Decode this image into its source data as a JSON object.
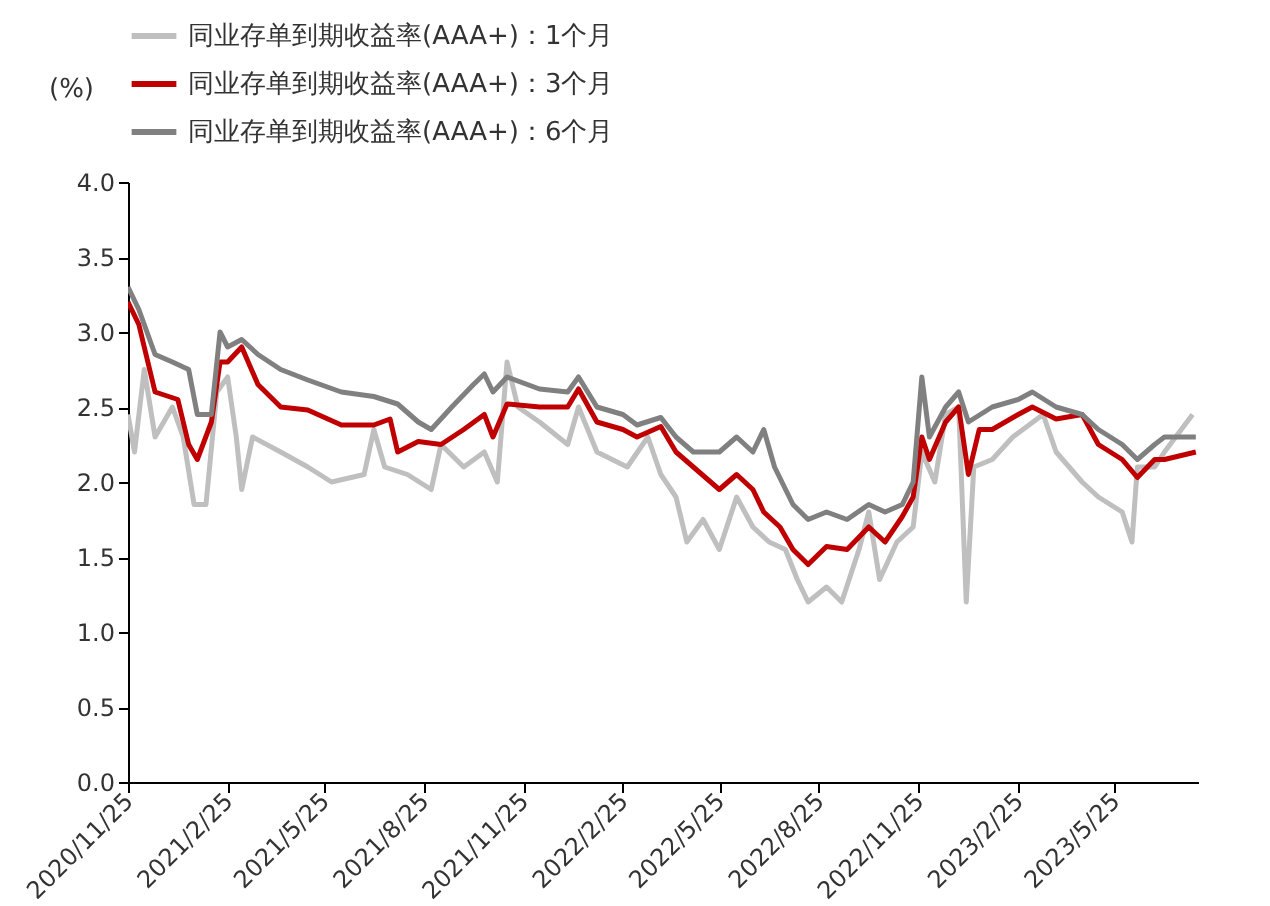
{
  "chart_data": {
    "type": "line",
    "ylabel": "(%)",
    "xlim": [
      "2020-11-25",
      "2023-08-10"
    ],
    "xticks": [
      {
        "value": "2020-11-25",
        "label": "2020/11/25"
      },
      {
        "value": "2021-02-25",
        "label": "2021/2/25"
      },
      {
        "value": "2021-05-25",
        "label": "2021/5/25"
      },
      {
        "value": "2021-08-25",
        "label": "2021/8/25"
      },
      {
        "value": "2021-11-25",
        "label": "2021/11/25"
      },
      {
        "value": "2022-02-25",
        "label": "2022/2/25"
      },
      {
        "value": "2022-05-25",
        "label": "2022/5/25"
      },
      {
        "value": "2022-08-25",
        "label": "2022/8/25"
      },
      {
        "value": "2022-11-25",
        "label": "2022/11/25"
      },
      {
        "value": "2023-02-25",
        "label": "2023/2/25"
      },
      {
        "value": "2023-05-25",
        "label": "2023/5/25"
      }
    ],
    "ylim": [
      0,
      4
    ],
    "yticks": [
      {
        "value": 0,
        "label": "0.0"
      },
      {
        "value": 0.5,
        "label": "0.5"
      },
      {
        "value": 1,
        "label": "1.0"
      },
      {
        "value": 1.5,
        "label": "1.5"
      },
      {
        "value": 2,
        "label": "2.0"
      },
      {
        "value": 2.5,
        "label": "2.5"
      },
      {
        "value": 3,
        "label": "3.0"
      },
      {
        "value": 3.5,
        "label": "3.5"
      },
      {
        "value": 4,
        "label": "4.0"
      }
    ],
    "grid": false,
    "legend": "top",
    "line_style": "solid",
    "marker": "none",
    "series": [
      {
        "name": "同业存单到期收益率(AAA+)：1个月",
        "color": "#bfbfbf",
        "x": [
          "2020-11-25",
          "2020-12-01",
          "2020-12-10",
          "2020-12-20",
          "2021-01-05",
          "2021-01-15",
          "2021-01-25",
          "2021-02-05",
          "2021-02-15",
          "2021-02-25",
          "2021-03-05",
          "2021-03-10",
          "2021-03-20",
          "2021-04-15",
          "2021-05-10",
          "2021-06-01",
          "2021-07-01",
          "2021-07-10",
          "2021-07-20",
          "2021-08-10",
          "2021-09-01",
          "2021-09-10",
          "2021-10-01",
          "2021-10-20",
          "2021-11-01",
          "2021-11-10",
          "2021-11-20",
          "2021-12-10",
          "2022-01-05",
          "2022-01-15",
          "2022-02-01",
          "2022-03-01",
          "2022-03-20",
          "2022-04-01",
          "2022-04-15",
          "2022-04-25",
          "2022-05-10",
          "2022-05-25",
          "2022-06-10",
          "2022-06-25",
          "2022-07-10",
          "2022-07-25",
          "2022-08-05",
          "2022-08-15",
          "2022-09-01",
          "2022-09-15",
          "2022-10-01",
          "2022-10-10",
          "2022-10-20",
          "2022-11-05",
          "2022-11-20",
          "2022-11-28",
          "2022-12-10",
          "2022-12-20",
          "2023-01-01",
          "2023-01-08",
          "2023-01-15",
          "2023-02-01",
          "2023-02-20",
          "2023-03-20",
          "2023-04-01",
          "2023-04-25",
          "2023-05-10",
          "2023-06-01",
          "2023-06-10",
          "2023-06-15",
          "2023-07-01",
          "2023-07-10",
          "2023-08-05"
        ],
        "values": [
          2.45,
          2.2,
          2.75,
          2.3,
          2.5,
          2.3,
          1.85,
          1.85,
          2.6,
          2.7,
          2.3,
          1.95,
          2.3,
          2.2,
          2.1,
          2.0,
          2.05,
          2.35,
          2.1,
          2.05,
          1.95,
          2.25,
          2.1,
          2.2,
          2.0,
          2.8,
          2.5,
          2.4,
          2.25,
          2.5,
          2.2,
          2.1,
          2.3,
          2.05,
          1.9,
          1.6,
          1.75,
          1.55,
          1.9,
          1.7,
          1.6,
          1.55,
          1.35,
          1.2,
          1.3,
          1.2,
          1.55,
          1.8,
          1.35,
          1.6,
          1.7,
          2.2,
          2.0,
          2.45,
          2.5,
          1.2,
          2.1,
          2.15,
          2.3,
          2.45,
          2.2,
          2.0,
          1.9,
          1.8,
          1.6,
          2.1,
          2.1,
          2.2,
          2.45
        ]
      },
      {
        "name": "同业存单到期收益率(AAA+)：3个月",
        "color": "#c00000",
        "x": [
          "2020-11-25",
          "2020-12-05",
          "2020-12-20",
          "2021-01-10",
          "2021-01-20",
          "2021-01-28",
          "2021-02-10",
          "2021-02-18",
          "2021-02-25",
          "2021-03-10",
          "2021-03-25",
          "2021-04-15",
          "2021-05-10",
          "2021-06-10",
          "2021-07-10",
          "2021-07-25",
          "2021-08-01",
          "2021-08-20",
          "2021-09-10",
          "2021-10-01",
          "2021-10-20",
          "2021-10-28",
          "2021-11-10",
          "2021-12-10",
          "2022-01-05",
          "2022-01-15",
          "2022-02-01",
          "2022-02-25",
          "2022-03-10",
          "2022-04-01",
          "2022-04-15",
          "2022-05-01",
          "2022-05-25",
          "2022-06-10",
          "2022-06-25",
          "2022-07-05",
          "2022-07-20",
          "2022-08-01",
          "2022-08-15",
          "2022-09-01",
          "2022-09-20",
          "2022-10-10",
          "2022-10-25",
          "2022-11-10",
          "2022-11-20",
          "2022-11-28",
          "2022-12-05",
          "2022-12-20",
          "2023-01-01",
          "2023-01-10",
          "2023-01-20",
          "2023-02-01",
          "2023-02-25",
          "2023-03-10",
          "2023-04-01",
          "2023-04-25",
          "2023-05-10",
          "2023-06-01",
          "2023-06-15",
          "2023-07-01",
          "2023-07-10",
          "2023-08-08"
        ],
        "values": [
          3.2,
          3.05,
          2.6,
          2.55,
          2.25,
          2.15,
          2.4,
          2.8,
          2.8,
          2.9,
          2.65,
          2.5,
          2.48,
          2.38,
          2.38,
          2.42,
          2.2,
          2.27,
          2.25,
          2.35,
          2.45,
          2.3,
          2.52,
          2.5,
          2.5,
          2.62,
          2.4,
          2.35,
          2.3,
          2.37,
          2.2,
          2.1,
          1.95,
          2.05,
          1.95,
          1.8,
          1.7,
          1.55,
          1.45,
          1.57,
          1.55,
          1.7,
          1.6,
          1.77,
          1.9,
          2.3,
          2.15,
          2.4,
          2.5,
          2.05,
          2.35,
          2.35,
          2.45,
          2.5,
          2.42,
          2.45,
          2.25,
          2.15,
          2.03,
          2.15,
          2.15,
          2.2
        ]
      },
      {
        "name": "同业存单到期收益率(AAA+)：6个月",
        "color": "#808080",
        "x": [
          "2020-11-25",
          "2020-12-05",
          "2020-12-20",
          "2021-01-05",
          "2021-01-20",
          "2021-01-28",
          "2021-02-10",
          "2021-02-18",
          "2021-02-25",
          "2021-03-10",
          "2021-03-25",
          "2021-04-15",
          "2021-05-10",
          "2021-06-10",
          "2021-07-10",
          "2021-08-01",
          "2021-08-20",
          "2021-09-01",
          "2021-09-20",
          "2021-10-10",
          "2021-10-20",
          "2021-10-28",
          "2021-11-10",
          "2021-12-10",
          "2022-01-05",
          "2022-01-15",
          "2022-02-01",
          "2022-02-25",
          "2022-03-10",
          "2022-04-01",
          "2022-04-15",
          "2022-05-01",
          "2022-05-25",
          "2022-06-10",
          "2022-06-25",
          "2022-07-05",
          "2022-07-15",
          "2022-08-01",
          "2022-08-15",
          "2022-09-01",
          "2022-09-20",
          "2022-10-10",
          "2022-10-25",
          "2022-11-10",
          "2022-11-20",
          "2022-11-28",
          "2022-12-05",
          "2022-12-20",
          "2023-01-01",
          "2023-01-10",
          "2023-02-01",
          "2023-02-25",
          "2023-03-10",
          "2023-04-01",
          "2023-04-25",
          "2023-05-10",
          "2023-06-01",
          "2023-06-15",
          "2023-07-01",
          "2023-07-10",
          "2023-08-08"
        ],
        "values": [
          3.3,
          3.15,
          2.85,
          2.8,
          2.75,
          2.45,
          2.45,
          3.0,
          2.9,
          2.95,
          2.85,
          2.75,
          2.68,
          2.6,
          2.57,
          2.52,
          2.4,
          2.35,
          2.5,
          2.65,
          2.72,
          2.6,
          2.7,
          2.62,
          2.6,
          2.7,
          2.5,
          2.45,
          2.38,
          2.43,
          2.3,
          2.2,
          2.2,
          2.3,
          2.2,
          2.35,
          2.1,
          1.85,
          1.75,
          1.8,
          1.75,
          1.85,
          1.8,
          1.85,
          2.0,
          2.7,
          2.3,
          2.5,
          2.6,
          2.4,
          2.5,
          2.55,
          2.6,
          2.5,
          2.45,
          2.35,
          2.25,
          2.15,
          2.25,
          2.3,
          2.3
        ]
      }
    ]
  }
}
